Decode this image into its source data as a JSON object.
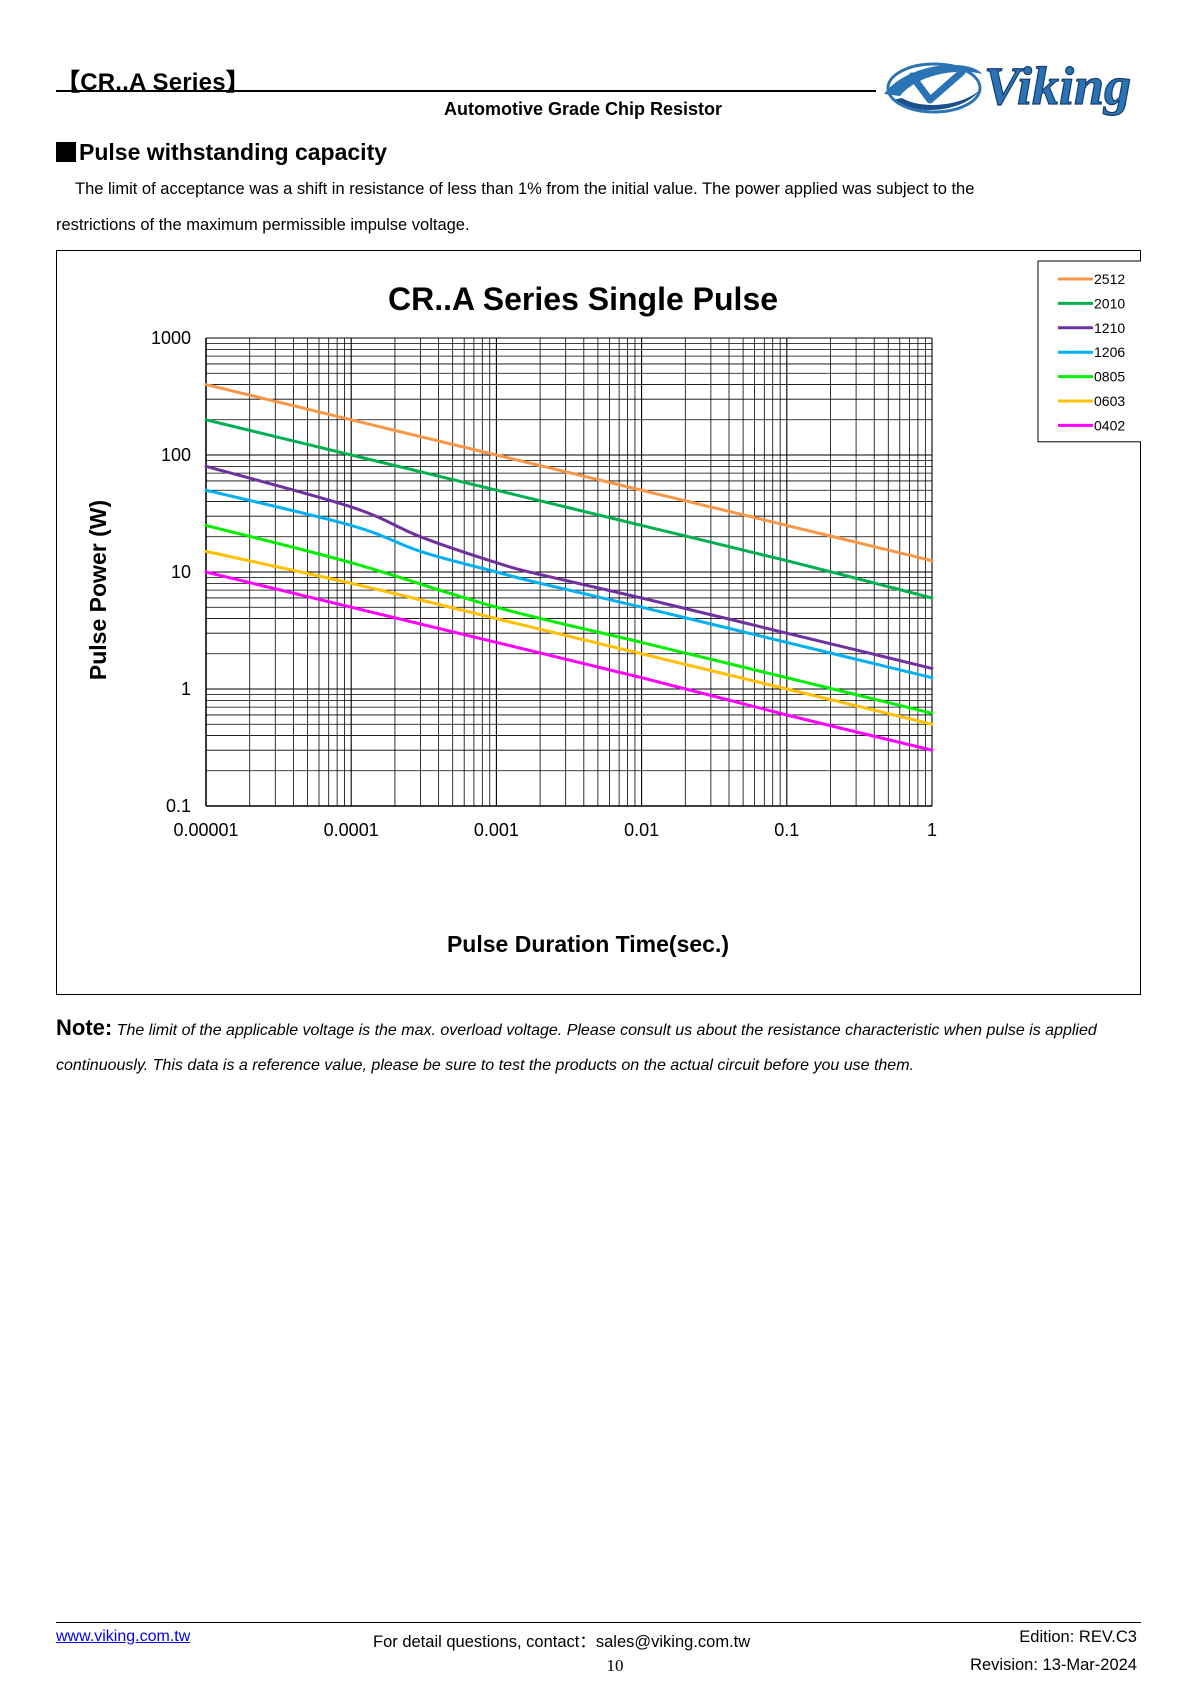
{
  "header": {
    "series_title": "【CR..A Series】",
    "subtitle": "Automotive Grade Chip Resistor",
    "logo_text": "Viking"
  },
  "section": {
    "heading": "Pulse withstanding capacity",
    "intro_line1": "The limit of acceptance was a shift in resistance of less than 1% from the initial value. The power applied was subject to the",
    "intro_line2": "restrictions of the maximum permissible impulse voltage."
  },
  "chart_data": {
    "type": "line",
    "title": "CR..A Series Single Pulse",
    "xlabel": "Pulse Duration Time(sec.)",
    "ylabel": "Pulse Power (W)",
    "x_scale": "log",
    "y_scale": "log",
    "xlim": [
      1e-05,
      1
    ],
    "ylim": [
      0.1,
      1000
    ],
    "x_ticks": [
      "0.00001",
      "0.0001",
      "0.001",
      "0.01",
      "0.1",
      "1"
    ],
    "y_ticks": [
      "0.1",
      "1",
      "10",
      "100",
      "1000"
    ],
    "grid": true,
    "legend_position": "top-right",
    "series": [
      {
        "name": "2512",
        "color": "#f79646",
        "points": [
          [
            1e-05,
            400
          ],
          [
            0.0001,
            200
          ],
          [
            0.001,
            100
          ],
          [
            0.01,
            50
          ],
          [
            0.1,
            25
          ],
          [
            1,
            12.5
          ]
        ]
      },
      {
        "name": "2010",
        "color": "#00b050",
        "points": [
          [
            1e-05,
            200
          ],
          [
            0.0001,
            100
          ],
          [
            0.001,
            50
          ],
          [
            0.01,
            25
          ],
          [
            0.1,
            12.5
          ],
          [
            1,
            6
          ]
        ]
      },
      {
        "name": "1210",
        "color": "#7030a0",
        "points": [
          [
            1e-05,
            80
          ],
          [
            0.0001,
            36
          ],
          [
            0.0003,
            20
          ],
          [
            0.001,
            12
          ],
          [
            0.002,
            9.5
          ],
          [
            0.01,
            6
          ],
          [
            0.1,
            3
          ],
          [
            1,
            1.5
          ]
        ]
      },
      {
        "name": "1206",
        "color": "#00b0f0",
        "points": [
          [
            1e-05,
            50
          ],
          [
            0.0001,
            25
          ],
          [
            0.0003,
            15
          ],
          [
            0.001,
            10
          ],
          [
            0.002,
            8
          ],
          [
            0.01,
            5
          ],
          [
            0.1,
            2.5
          ],
          [
            1,
            1.25
          ]
        ]
      },
      {
        "name": "0805",
        "color": "#00ee00",
        "points": [
          [
            1e-05,
            25
          ],
          [
            0.0001,
            12
          ],
          [
            0.001,
            5
          ],
          [
            0.01,
            2.5
          ],
          [
            0.1,
            1.25
          ],
          [
            1,
            0.62
          ]
        ]
      },
      {
        "name": "0603",
        "color": "#ffc000",
        "points": [
          [
            1e-05,
            15
          ],
          [
            0.0001,
            8
          ],
          [
            0.001,
            4
          ],
          [
            0.01,
            2
          ],
          [
            0.1,
            1
          ],
          [
            1,
            0.5
          ]
        ]
      },
      {
        "name": "0402",
        "color": "#ff00ff",
        "points": [
          [
            1e-05,
            10
          ],
          [
            0.0001,
            5
          ],
          [
            0.001,
            2.5
          ],
          [
            0.01,
            1.25
          ],
          [
            0.1,
            0.6
          ],
          [
            1,
            0.3
          ]
        ]
      }
    ]
  },
  "note": {
    "label": "Note:",
    "text": "The limit of the applicable voltage is the max. overload voltage. Please consult us about the resistance characteristic when pulse is applied continuously. This data is a reference value, please be sure to test the products on the actual circuit before you use them."
  },
  "footer": {
    "website": "www.viking.com.tw",
    "contact": "For detail questions, contact：sales@viking.com.tw",
    "edition": "Edition: REV.C3",
    "page_number": "10",
    "revision": "Revision: 13-Mar-2024"
  }
}
